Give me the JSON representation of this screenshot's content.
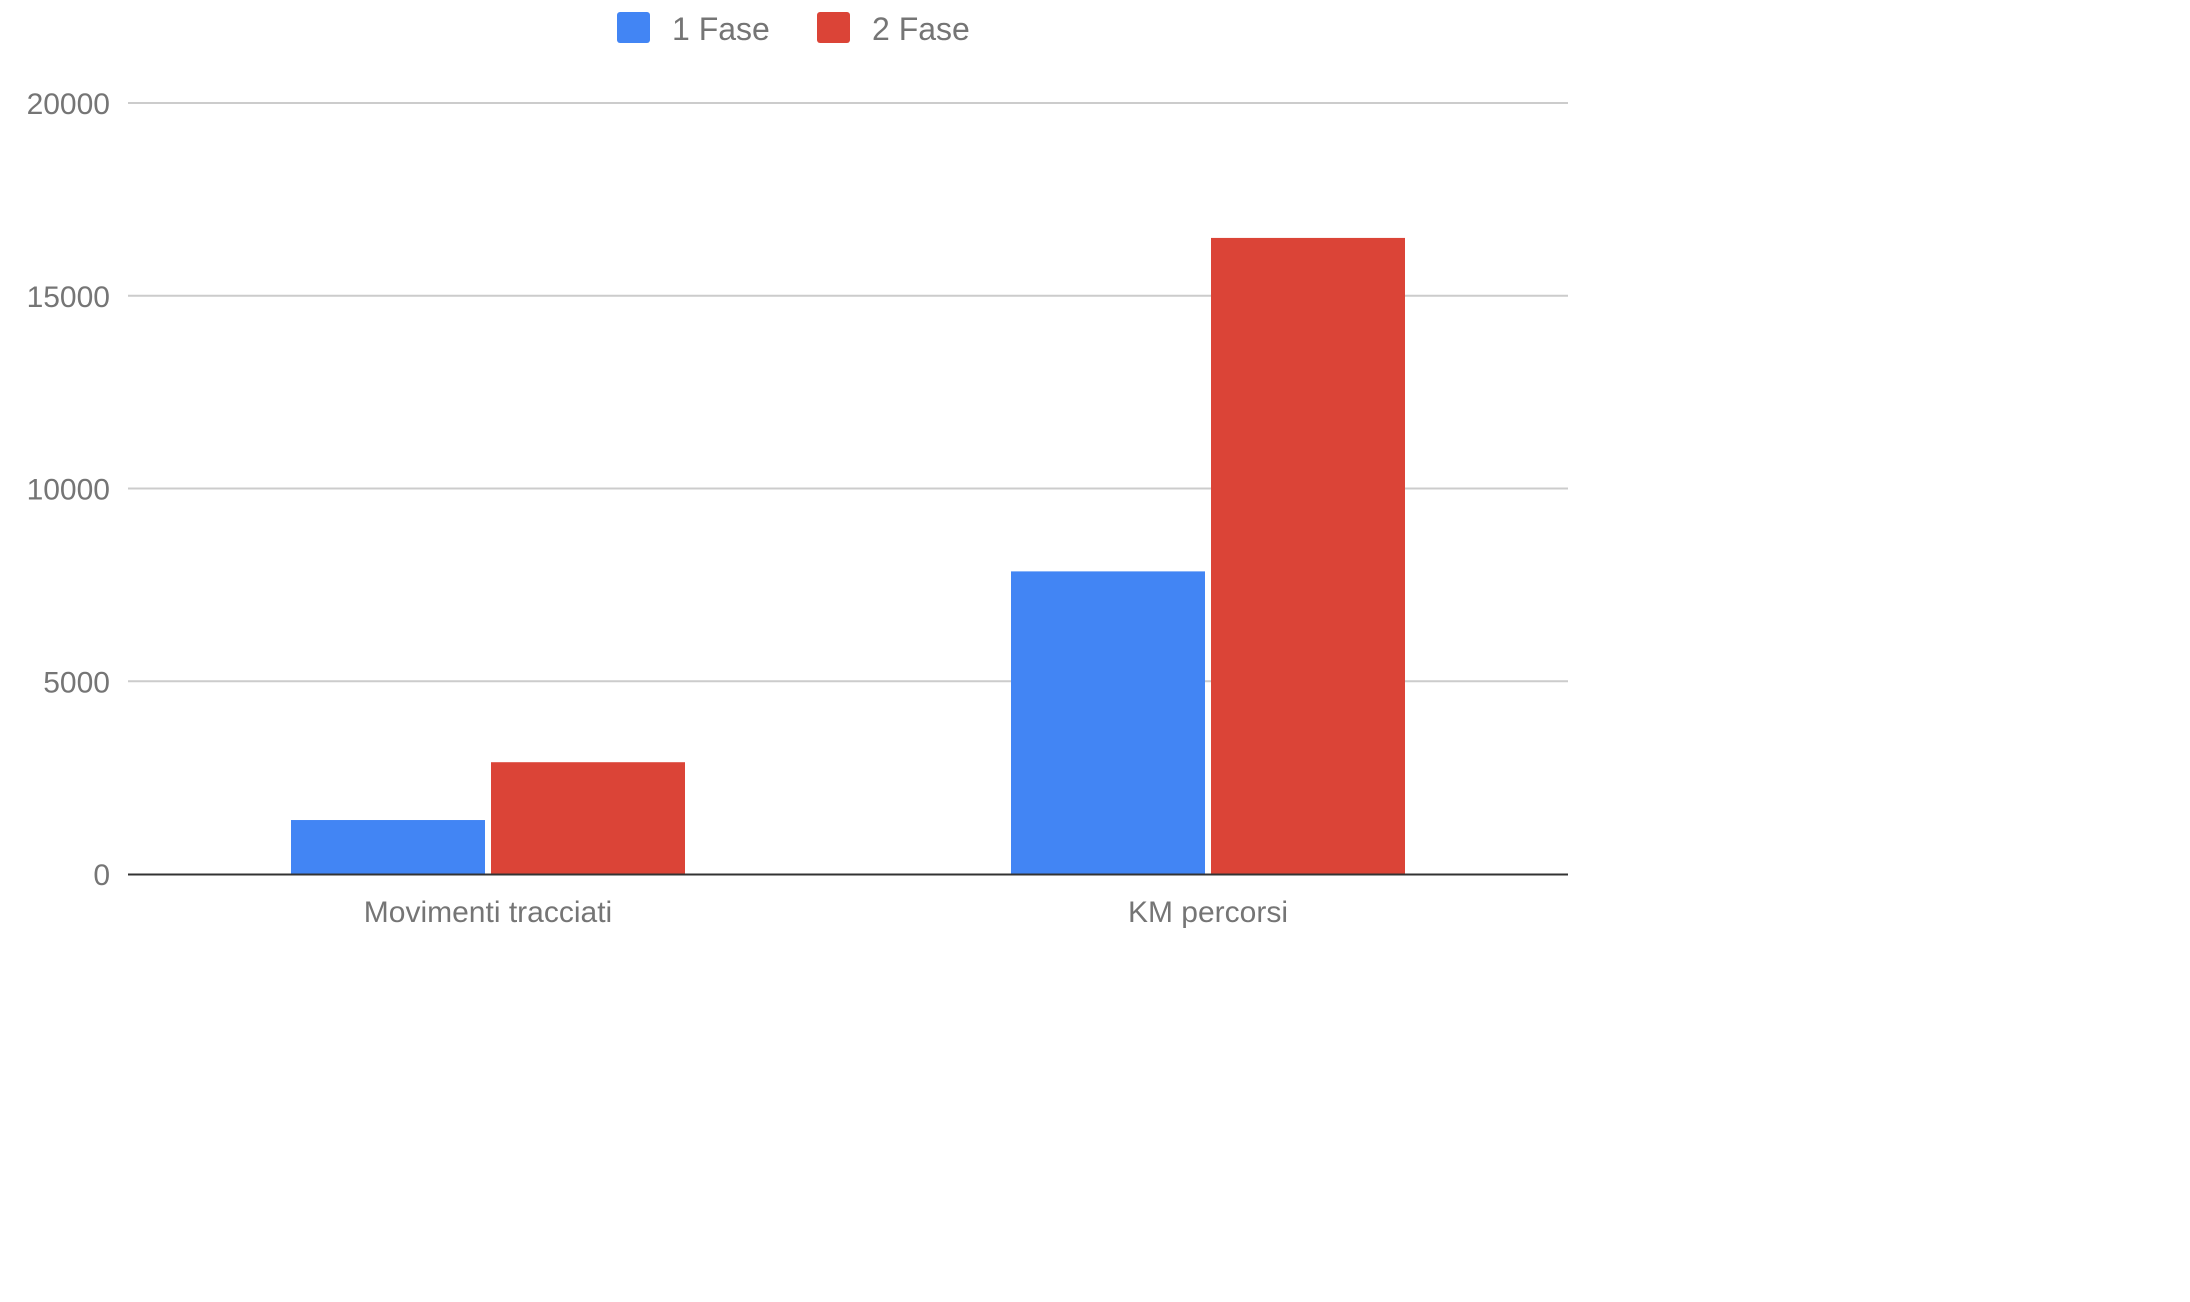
{
  "chart_data": {
    "type": "bar",
    "categories": [
      "Movimenti tracciati",
      "KM percorsi"
    ],
    "series": [
      {
        "name": "1 Fase",
        "color": "#4285f4",
        "values": [
          1400,
          7850
        ]
      },
      {
        "name": "2 Fase",
        "color": "#db4437",
        "values": [
          2900,
          16500
        ]
      }
    ],
    "yticks": [
      "0",
      "5000",
      "10000",
      "15000",
      "20000"
    ],
    "ylim": [
      0,
      20000
    ],
    "grid": true,
    "legend": "top-center",
    "title": "",
    "xlabel": "",
    "ylabel": ""
  }
}
